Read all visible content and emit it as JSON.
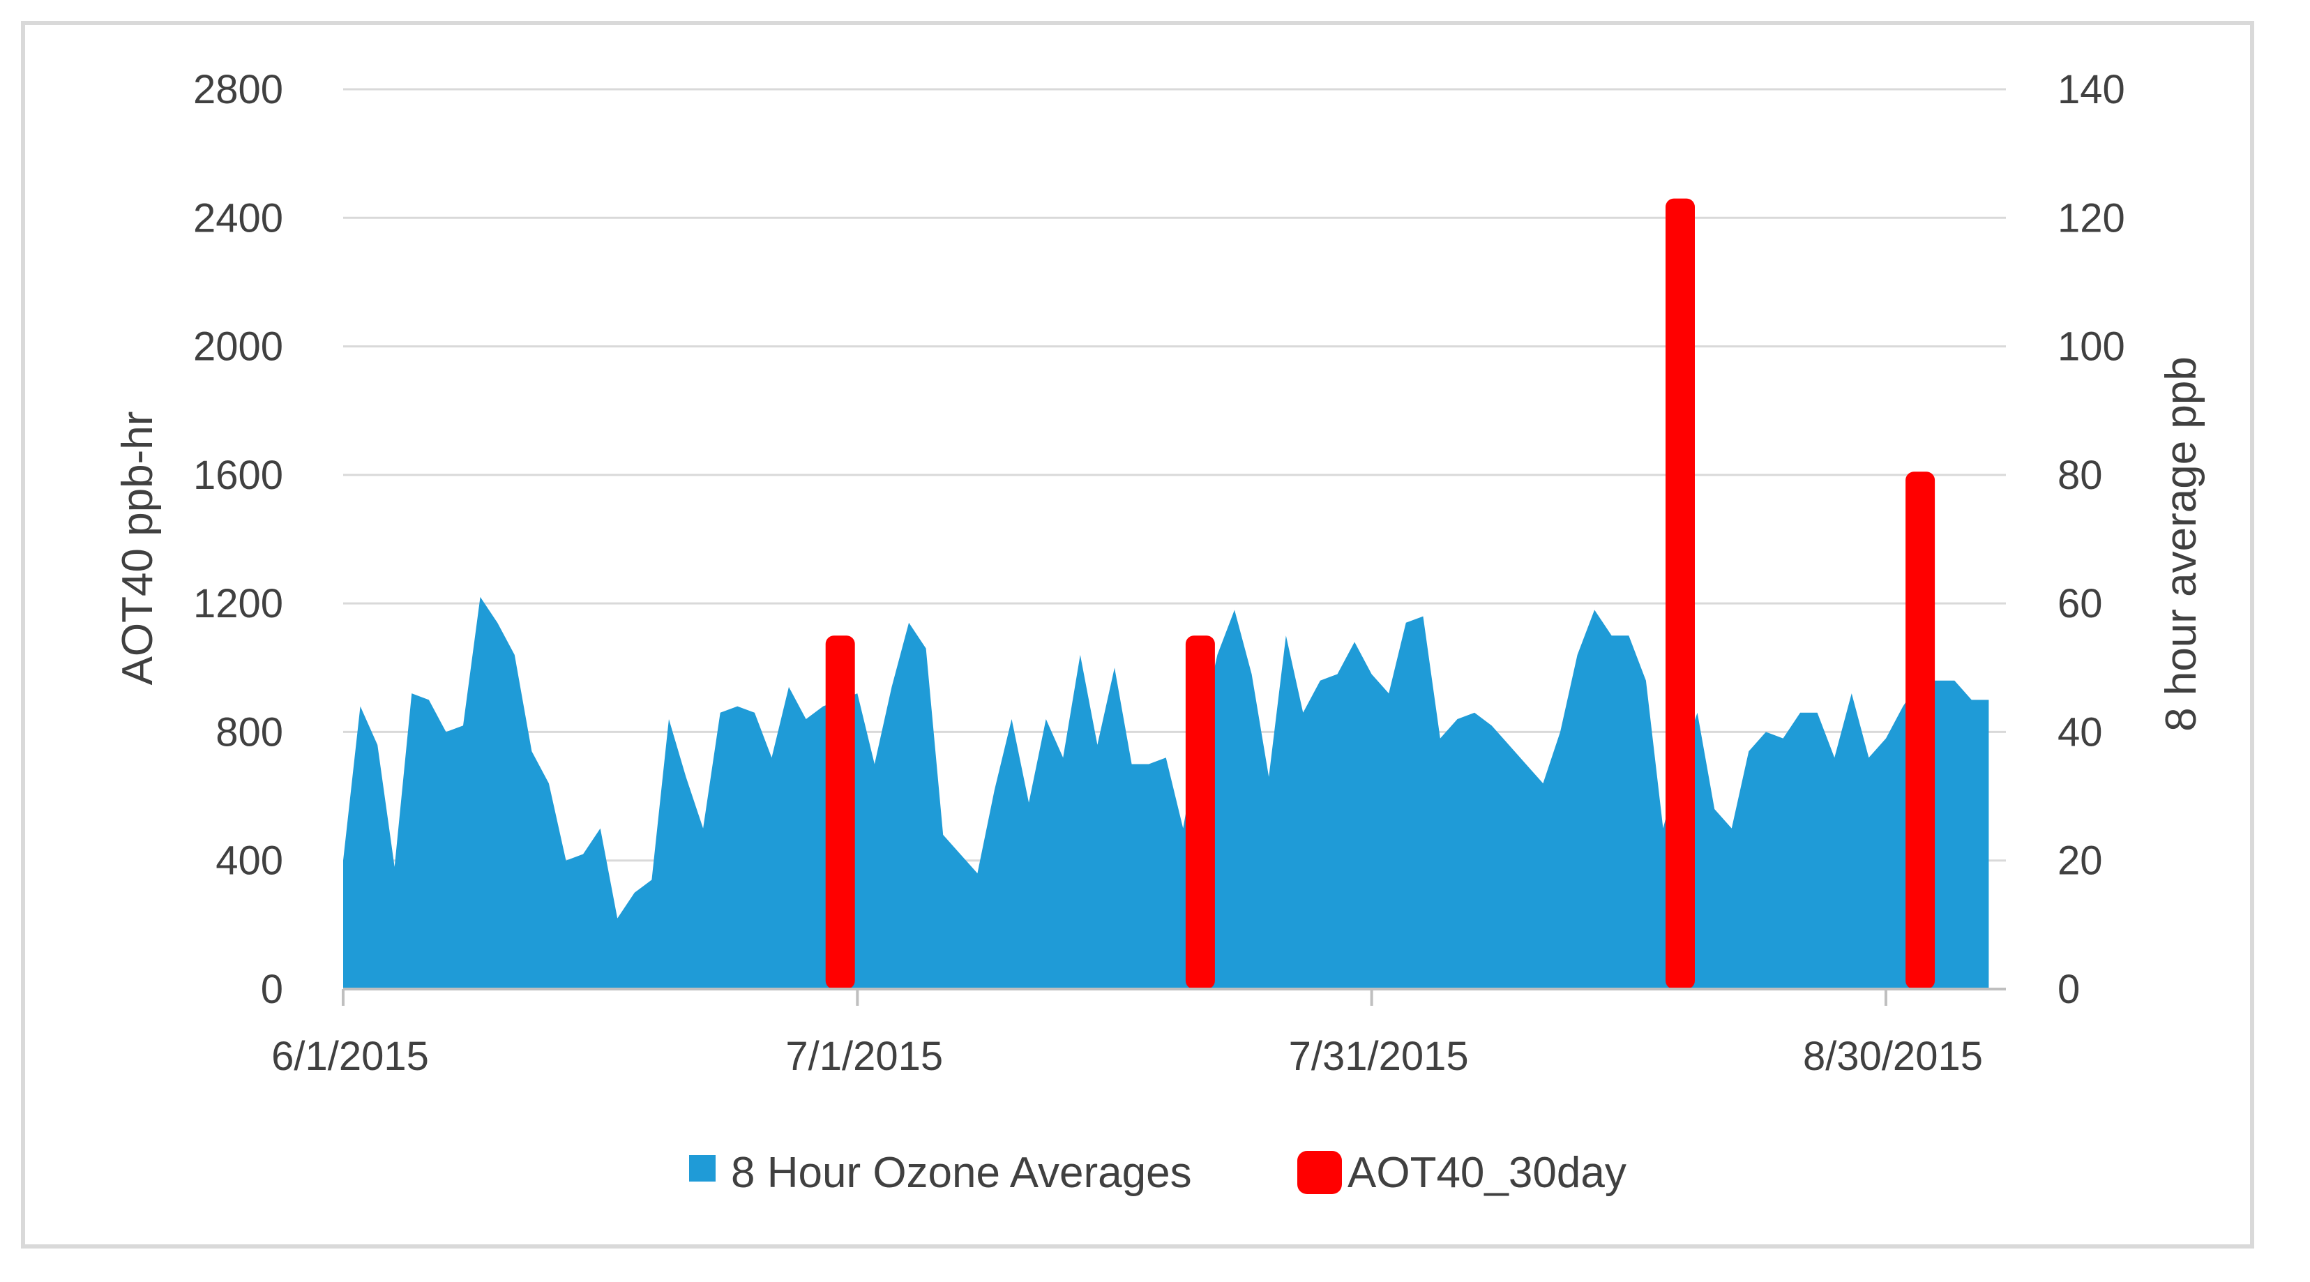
{
  "chart_data": {
    "type": "area",
    "title": "",
    "y_left_label": "AOT40 ppb-hr",
    "y_right_label": "8 hour average ppb",
    "y_left_ticks": [
      "0",
      "400",
      "800",
      "1200",
      "1600",
      "2000",
      "2400",
      "2800"
    ],
    "y_right_ticks": [
      "0",
      "20",
      "40",
      "60",
      "80",
      "100",
      "120",
      "140"
    ],
    "y_left_range": [
      0,
      2800
    ],
    "y_right_range": [
      0,
      140
    ],
    "x_range": [
      "6/1/2015",
      "9/6/2015"
    ],
    "x_tick_labels": [
      "6/1/2015",
      "7/1/2015",
      "7/31/2015",
      "8/30/2015"
    ],
    "grid": "horizontal",
    "legend_position": "bottom",
    "series": [
      {
        "name": "8 Hour Ozone Averages",
        "type": "area",
        "axis": "right",
        "color": "#1f9bd7",
        "x": [
          "6/1/2015",
          "6/2/2015",
          "6/3/2015",
          "6/4/2015",
          "6/5/2015",
          "6/6/2015",
          "6/7/2015",
          "6/8/2015",
          "6/9/2015",
          "6/10/2015",
          "6/11/2015",
          "6/12/2015",
          "6/13/2015",
          "6/14/2015",
          "6/15/2015",
          "6/16/2015",
          "6/17/2015",
          "6/18/2015",
          "6/19/2015",
          "6/20/2015",
          "6/21/2015",
          "6/22/2015",
          "6/23/2015",
          "6/24/2015",
          "6/25/2015",
          "6/26/2015",
          "6/27/2015",
          "6/28/2015",
          "6/29/2015",
          "6/30/2015",
          "7/1/2015",
          "7/2/2015",
          "7/3/2015",
          "7/4/2015",
          "7/5/2015",
          "7/6/2015",
          "7/7/2015",
          "7/8/2015",
          "7/9/2015",
          "7/10/2015",
          "7/11/2015",
          "7/12/2015",
          "7/13/2015",
          "7/14/2015",
          "7/15/2015",
          "7/16/2015",
          "7/17/2015",
          "7/18/2015",
          "7/19/2015",
          "7/20/2015",
          "7/21/2015",
          "7/22/2015",
          "7/23/2015",
          "7/24/2015",
          "7/25/2015",
          "7/26/2015",
          "7/27/2015",
          "7/28/2015",
          "7/29/2015",
          "7/30/2015",
          "7/31/2015",
          "8/1/2015",
          "8/2/2015",
          "8/3/2015",
          "8/4/2015",
          "8/5/2015",
          "8/6/2015",
          "8/7/2015",
          "8/8/2015",
          "8/9/2015",
          "8/10/2015",
          "8/11/2015",
          "8/12/2015",
          "8/13/2015",
          "8/14/2015",
          "8/15/2015",
          "8/16/2015",
          "8/17/2015",
          "8/18/2015",
          "8/19/2015",
          "8/20/2015",
          "8/21/2015",
          "8/22/2015",
          "8/23/2015",
          "8/24/2015",
          "8/25/2015",
          "8/26/2015",
          "8/27/2015",
          "8/28/2015",
          "8/29/2015",
          "8/30/2015",
          "8/31/2015",
          "9/1/2015",
          "9/2/2015",
          "9/3/2015",
          "9/4/2015",
          "9/5/2015"
        ],
        "values": [
          20,
          44,
          38,
          19,
          46,
          45,
          40,
          41,
          61,
          57,
          52,
          37,
          32,
          20,
          21,
          25,
          11,
          15,
          17,
          42,
          33,
          25,
          43,
          44,
          43,
          36,
          47,
          42,
          44,
          45,
          46,
          35,
          47,
          57,
          53,
          24,
          21,
          18,
          31,
          42,
          29,
          42,
          36,
          52,
          38,
          50,
          35,
          35,
          36,
          25,
          40,
          52,
          59,
          49,
          33,
          55,
          43,
          48,
          49,
          54,
          49,
          46,
          57,
          58,
          39,
          42,
          43,
          41,
          38,
          35,
          32,
          40,
          52,
          59,
          55,
          55,
          48,
          25,
          35,
          43,
          28,
          25,
          37,
          40,
          39,
          43,
          43,
          36,
          46,
          36,
          39,
          44,
          48,
          48,
          48,
          45,
          45
        ]
      },
      {
        "name": "AOT40_30day",
        "type": "bar",
        "axis": "left",
        "color": "#ff0000",
        "x": [
          "6/30/2015",
          "7/21/2015",
          "8/18/2015",
          "9/1/2015"
        ],
        "values": [
          1100,
          1100,
          2460,
          1610
        ]
      }
    ]
  }
}
